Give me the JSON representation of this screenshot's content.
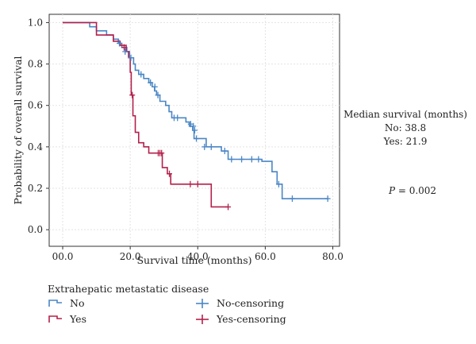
{
  "chart_data": {
    "type": "line",
    "subtype": "kaplan-meier step",
    "xlabel": "Survival time (months)",
    "ylabel": "Probability of overall survival",
    "xlim": [
      -4,
      82
    ],
    "ylim": [
      -0.08,
      1.04
    ],
    "x_ticks": [
      0,
      20,
      40,
      60,
      80
    ],
    "x_tick_labels": [
      "00.0",
      "20.0",
      "40.0",
      "60.0",
      "80.0"
    ],
    "y_ticks": [
      0,
      0.2,
      0.4,
      0.6,
      0.8,
      1.0
    ],
    "y_tick_labels": [
      "0.0",
      "0.2",
      "0.4",
      "0.6",
      "0.8",
      "1.0"
    ],
    "grid": true,
    "series": [
      {
        "name": "No",
        "color": "#4a86c5",
        "steps": [
          [
            0,
            1.0
          ],
          [
            8,
            0.98
          ],
          [
            10,
            0.96
          ],
          [
            13,
            0.94
          ],
          [
            15,
            0.92
          ],
          [
            16.5,
            0.9
          ],
          [
            17.5,
            0.88
          ],
          [
            19,
            0.86
          ],
          [
            19.8,
            0.83
          ],
          [
            21,
            0.8
          ],
          [
            21.5,
            0.77
          ],
          [
            22.5,
            0.75
          ],
          [
            24,
            0.73
          ],
          [
            25.5,
            0.71
          ],
          [
            26.5,
            0.69
          ],
          [
            27.2,
            0.67
          ],
          [
            27.8,
            0.65
          ],
          [
            28.8,
            0.62
          ],
          [
            30.5,
            0.6
          ],
          [
            31.5,
            0.57
          ],
          [
            32.3,
            0.54
          ],
          [
            36.5,
            0.52
          ],
          [
            37.5,
            0.5
          ],
          [
            38.5,
            0.48
          ],
          [
            38.9,
            0.44
          ],
          [
            42.5,
            0.4
          ],
          [
            47,
            0.38
          ],
          [
            49,
            0.34
          ],
          [
            59,
            0.33
          ],
          [
            62,
            0.28
          ],
          [
            63.5,
            0.22
          ],
          [
            65,
            0.15
          ],
          [
            78.5,
            0.15
          ]
        ],
        "censor_points": [
          [
            16.8,
            0.9
          ],
          [
            18.5,
            0.86
          ],
          [
            20.2,
            0.83
          ],
          [
            23.2,
            0.75
          ],
          [
            26,
            0.71
          ],
          [
            27.3,
            0.69
          ],
          [
            28.2,
            0.65
          ],
          [
            33,
            0.54
          ],
          [
            34,
            0.54
          ],
          [
            37.9,
            0.51
          ],
          [
            38.7,
            0.5
          ],
          [
            39.1,
            0.48
          ],
          [
            39.6,
            0.44
          ],
          [
            42,
            0.4
          ],
          [
            44,
            0.4
          ],
          [
            48,
            0.38
          ],
          [
            50,
            0.34
          ],
          [
            53,
            0.34
          ],
          [
            56,
            0.34
          ],
          [
            58,
            0.34
          ],
          [
            64,
            0.22
          ],
          [
            68,
            0.15
          ],
          [
            78.5,
            0.15
          ]
        ]
      },
      {
        "name": "Yes",
        "color": "#b3204b",
        "steps": [
          [
            0,
            1.0
          ],
          [
            10,
            0.94
          ],
          [
            15,
            0.91
          ],
          [
            17,
            0.89
          ],
          [
            18.8,
            0.86
          ],
          [
            19.5,
            0.83
          ],
          [
            20,
            0.76
          ],
          [
            20.3,
            0.65
          ],
          [
            20.8,
            0.55
          ],
          [
            21.5,
            0.47
          ],
          [
            22.5,
            0.42
          ],
          [
            24,
            0.4
          ],
          [
            25.5,
            0.37
          ],
          [
            29.5,
            0.3
          ],
          [
            31,
            0.27
          ],
          [
            32,
            0.22
          ],
          [
            44,
            0.11
          ],
          [
            49,
            0.11
          ]
        ],
        "censor_points": [
          [
            18.2,
            0.88
          ],
          [
            20.6,
            0.65
          ],
          [
            28.3,
            0.37
          ],
          [
            28.8,
            0.37
          ],
          [
            29.3,
            0.37
          ],
          [
            31.6,
            0.27
          ],
          [
            37.8,
            0.22
          ],
          [
            40,
            0.22
          ],
          [
            49,
            0.11
          ]
        ]
      }
    ],
    "legend": {
      "title": "Extrahepatic metastatic disease",
      "position": "bottom",
      "entries": [
        {
          "label": "No",
          "kind": "line",
          "color": "#4a86c5"
        },
        {
          "label": "No-censoring",
          "kind": "censor",
          "color": "#4a86c5"
        },
        {
          "label": "Yes",
          "kind": "line",
          "color": "#b3204b"
        },
        {
          "label": "Yes-censoring",
          "kind": "censor",
          "color": "#b3204b"
        }
      ]
    },
    "annotations": {
      "median_title": "Median survival (months)",
      "median_no": "No: 38.8",
      "median_yes": "Yes: 21.9",
      "p_label": "P",
      "p_value": " = 0.002"
    }
  }
}
